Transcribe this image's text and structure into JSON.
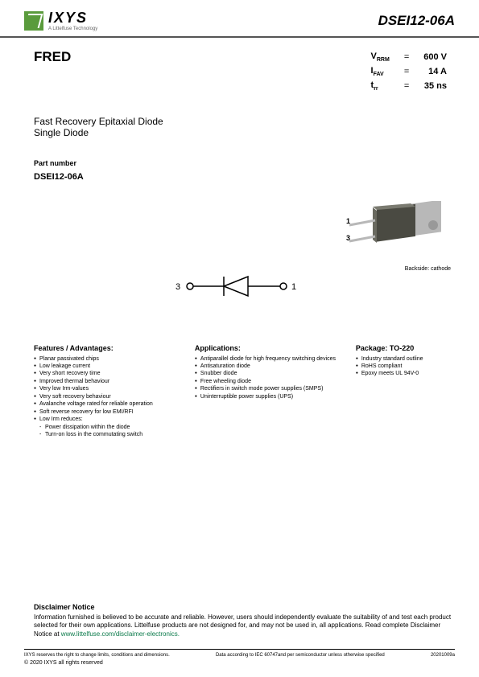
{
  "header": {
    "logo_text": "IXYS",
    "logo_sub": "A Littelfuse Technology",
    "part_code": "DSEI12-06A"
  },
  "product": {
    "name": "FRED",
    "specs": [
      {
        "sym": "V",
        "sub": "RRM",
        "val": "600",
        "unit": "V"
      },
      {
        "sym": "I",
        "sub": "FAV",
        "val": "14",
        "unit": "A"
      },
      {
        "sym": "t",
        "sub": "rr",
        "val": "35",
        "unit": "ns"
      }
    ],
    "desc_line1": "Fast Recovery Epitaxial Diode",
    "desc_line2": "Single Diode"
  },
  "part_number": {
    "label": "Part number",
    "value": "DSEI12-06A"
  },
  "package_img": {
    "pin1": "1",
    "pin3": "3",
    "caption": "Backside: cathode",
    "body_color": "#4a4a42",
    "tab_color": "#b8b8b8"
  },
  "schematic": {
    "pin_left": "3",
    "pin_right": "1"
  },
  "features": {
    "heading": "Features / Advantages:",
    "items": [
      {
        "t": "Planar passivated chips"
      },
      {
        "t": "Low leakage current"
      },
      {
        "t": "Very short recovery time"
      },
      {
        "t": "Improved thermal behaviour"
      },
      {
        "t": "Very low Irm-values"
      },
      {
        "t": "Very soft recovery behaviour"
      },
      {
        "t": "Avalanche voltage rated for reliable operation"
      },
      {
        "t": "Soft reverse recovery for low EMI/RFI"
      },
      {
        "t": "Low Irm reduces:"
      },
      {
        "t": "Power dissipation within the diode",
        "sub": true
      },
      {
        "t": "Turn-on loss in the commutating switch",
        "sub": true
      }
    ]
  },
  "applications": {
    "heading": "Applications:",
    "items": [
      {
        "t": "Antiparallel diode for high frequency switching devices"
      },
      {
        "t": "Antisaturation diode"
      },
      {
        "t": "Snubber diode"
      },
      {
        "t": "Free wheeling diode"
      },
      {
        "t": "Rectifiers in switch mode power supplies (SMPS)"
      },
      {
        "t": "Uninterruptible power supplies (UPS)"
      }
    ]
  },
  "package": {
    "heading": "Package: TO-220",
    "items": [
      {
        "t": "Industry standard outline"
      },
      {
        "t": "RoHS compliant"
      },
      {
        "t": "Epoxy meets UL 94V-0"
      }
    ]
  },
  "disclaimer": {
    "heading": "Disclaimer Notice",
    "text": "Information furnished is believed to be accurate and reliable. However, users should independently evaluate the suitability of and test each product selected for their own applications. Littelfuse products are not designed for, and may not be used in, all applications. Read complete Disclaimer Notice at ",
    "link": "www.littelfuse.com/disclaimer-electronics."
  },
  "footer": {
    "left": "IXYS reserves the right to change limits, conditions and dimensions.",
    "center": "Data according to IEC 60747and per semiconductor unless otherwise specified",
    "right": "20201009a",
    "copyright": "© 2020  IXYS all rights reserved"
  }
}
